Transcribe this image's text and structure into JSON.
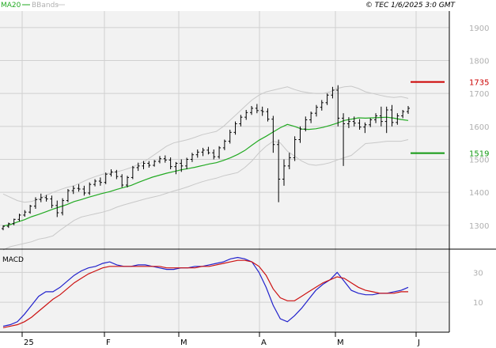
{
  "legend": {
    "ma_label": "MA20",
    "bb_label": "BBands"
  },
  "stamp": "© TEC 1/6/2025 3:0 GMT",
  "macd_label": "MACD",
  "colors": {
    "price": "#000000",
    "ma": "#22aa22",
    "bands": "#c8c8c8",
    "macd_line": "#2222cc",
    "signal_line": "#cc1111",
    "grid": "#d0d0d0",
    "panel_bg": "#f2f2f2",
    "resistance": "#cc0000",
    "support": "#119911"
  },
  "chart_data": [
    {
      "type": "line",
      "panel": "price",
      "x_ticks": [
        "25",
        "F",
        "M",
        "A",
        "M",
        "J"
      ],
      "y_ticks": [
        1300,
        1400,
        1500,
        1600,
        1700,
        1800,
        1900
      ],
      "ylim": [
        1230,
        1950
      ],
      "levels": [
        {
          "label": "1735",
          "value": 1735,
          "role": "resistance"
        },
        {
          "label": "1519",
          "value": 1519,
          "role": "support"
        }
      ],
      "series": [
        {
          "name": "MA20",
          "values": [
            1298,
            1302,
            1310,
            1317,
            1326,
            1333,
            1341,
            1349,
            1356,
            1363,
            1372,
            1378,
            1385,
            1391,
            1397,
            1402,
            1409,
            1415,
            1421,
            1430,
            1438,
            1446,
            1452,
            1458,
            1463,
            1468,
            1472,
            1476,
            1481,
            1486,
            1490,
            1497,
            1505,
            1515,
            1527,
            1543,
            1558,
            1570,
            1583,
            1596,
            1606,
            1600,
            1592,
            1591,
            1593,
            1597,
            1603,
            1610,
            1618,
            1622,
            1626,
            1625,
            1626,
            1627,
            1628,
            1625,
            1621,
            1618
          ]
        },
        {
          "name": "BB upper",
          "values": [
            1395,
            1385,
            1375,
            1370,
            1372,
            1380,
            1390,
            1400,
            1408,
            1415,
            1420,
            1430,
            1440,
            1448,
            1455,
            1458,
            1462,
            1468,
            1475,
            1485,
            1495,
            1510,
            1525,
            1540,
            1550,
            1555,
            1560,
            1567,
            1575,
            1580,
            1585,
            1600,
            1620,
            1640,
            1660,
            1680,
            1695,
            1705,
            1710,
            1715,
            1720,
            1712,
            1706,
            1702,
            1700,
            1700,
            1705,
            1715,
            1720,
            1722,
            1715,
            1705,
            1700,
            1695,
            1690,
            1688,
            1690,
            1685
          ]
        },
        {
          "name": "BB lower",
          "values": [
            1225,
            1235,
            1240,
            1245,
            1250,
            1258,
            1262,
            1268,
            1285,
            1300,
            1315,
            1325,
            1330,
            1335,
            1340,
            1346,
            1355,
            1362,
            1368,
            1374,
            1380,
            1385,
            1390,
            1397,
            1404,
            1410,
            1417,
            1425,
            1432,
            1438,
            1443,
            1450,
            1455,
            1460,
            1475,
            1495,
            1520,
            1540,
            1555,
            1550,
            1525,
            1510,
            1495,
            1485,
            1482,
            1485,
            1490,
            1498,
            1505,
            1512,
            1530,
            1548,
            1550,
            1552,
            1555,
            1555,
            1555,
            1560
          ]
        }
      ],
      "ohlc": [
        [
          1290,
          1300,
          1285,
          1297
        ],
        [
          1297,
          1308,
          1292,
          1305
        ],
        [
          1305,
          1320,
          1300,
          1318
        ],
        [
          1318,
          1335,
          1312,
          1331
        ],
        [
          1331,
          1346,
          1326,
          1340
        ],
        [
          1340,
          1362,
          1335,
          1358
        ],
        [
          1358,
          1385,
          1350,
          1378
        ],
        [
          1378,
          1396,
          1370,
          1384
        ],
        [
          1384,
          1392,
          1372,
          1380
        ],
        [
          1380,
          1390,
          1352,
          1360
        ],
        [
          1360,
          1375,
          1325,
          1338
        ],
        [
          1338,
          1382,
          1330,
          1375
        ],
        [
          1375,
          1410,
          1370,
          1405
        ],
        [
          1405,
          1420,
          1395,
          1412
        ],
        [
          1412,
          1425,
          1402,
          1410
        ],
        [
          1410,
          1420,
          1390,
          1398
        ],
        [
          1398,
          1430,
          1392,
          1424
        ],
        [
          1424,
          1440,
          1418,
          1434
        ],
        [
          1434,
          1445,
          1420,
          1430
        ],
        [
          1430,
          1460,
          1425,
          1455
        ],
        [
          1455,
          1470,
          1448,
          1462
        ],
        [
          1462,
          1468,
          1440,
          1448
        ],
        [
          1448,
          1455,
          1415,
          1422
        ],
        [
          1422,
          1450,
          1415,
          1445
        ],
        [
          1445,
          1480,
          1440,
          1475
        ],
        [
          1475,
          1490,
          1465,
          1480
        ],
        [
          1480,
          1495,
          1470,
          1488
        ],
        [
          1488,
          1495,
          1475,
          1482
        ],
        [
          1482,
          1498,
          1478,
          1494
        ],
        [
          1494,
          1510,
          1488,
          1502
        ],
        [
          1502,
          1512,
          1490,
          1498
        ],
        [
          1498,
          1506,
          1470,
          1478
        ],
        [
          1478,
          1492,
          1455,
          1488
        ],
        [
          1488,
          1500,
          1462,
          1480
        ],
        [
          1480,
          1505,
          1470,
          1500
        ],
        [
          1500,
          1520,
          1492,
          1514
        ],
        [
          1514,
          1530,
          1505,
          1522
        ],
        [
          1522,
          1535,
          1510,
          1528
        ],
        [
          1528,
          1538,
          1515,
          1520
        ],
        [
          1520,
          1530,
          1500,
          1508
        ],
        [
          1508,
          1540,
          1502,
          1535
        ],
        [
          1535,
          1560,
          1528,
          1555
        ],
        [
          1555,
          1590,
          1548,
          1582
        ],
        [
          1582,
          1615,
          1575,
          1608
        ],
        [
          1608,
          1635,
          1600,
          1628
        ],
        [
          1628,
          1650,
          1620,
          1642
        ],
        [
          1642,
          1662,
          1635,
          1655
        ],
        [
          1655,
          1668,
          1640,
          1648
        ],
        [
          1648,
          1660,
          1632,
          1645
        ],
        [
          1645,
          1655,
          1615,
          1622
        ],
        [
          1622,
          1632,
          1520,
          1545
        ],
        [
          1545,
          1560,
          1370,
          1440
        ],
        [
          1440,
          1500,
          1420,
          1480
        ],
        [
          1480,
          1520,
          1470,
          1505
        ],
        [
          1505,
          1570,
          1495,
          1560
        ],
        [
          1560,
          1600,
          1550,
          1592
        ],
        [
          1592,
          1630,
          1585,
          1620
        ],
        [
          1620,
          1645,
          1610,
          1640
        ],
        [
          1640,
          1665,
          1630,
          1658
        ],
        [
          1658,
          1680,
          1648,
          1672
        ],
        [
          1672,
          1700,
          1665,
          1695
        ],
        [
          1695,
          1720,
          1685,
          1710
        ],
        [
          1710,
          1725,
          1600,
          1625
        ],
        [
          1625,
          1640,
          1480,
          1608
        ],
        [
          1608,
          1628,
          1595,
          1615
        ],
        [
          1615,
          1630,
          1600,
          1610
        ],
        [
          1610,
          1622,
          1590,
          1598
        ],
        [
          1598,
          1612,
          1580,
          1605
        ],
        [
          1605,
          1625,
          1598,
          1620
        ],
        [
          1620,
          1640,
          1610,
          1632
        ],
        [
          1632,
          1660,
          1600,
          1615
        ],
        [
          1615,
          1660,
          1580,
          1650
        ],
        [
          1650,
          1665,
          1600,
          1612
        ],
        [
          1612,
          1640,
          1605,
          1632
        ],
        [
          1632,
          1650,
          1625,
          1645
        ],
        [
          1645,
          1662,
          1638,
          1655
        ]
      ]
    },
    {
      "type": "line",
      "panel": "macd",
      "y_ticks": [
        10,
        30
      ],
      "ylim": [
        -10,
        45
      ],
      "series": [
        {
          "name": "MACD",
          "values": [
            -6,
            -5,
            -3,
            2,
            8,
            14,
            17,
            17,
            20,
            24,
            28,
            31,
            33,
            34,
            36,
            37,
            35,
            34,
            34,
            35,
            35,
            34,
            33,
            32,
            32,
            33,
            33,
            34,
            34,
            35,
            36,
            37,
            39,
            40,
            39,
            37,
            30,
            20,
            8,
            -1,
            -3,
            1,
            6,
            12,
            18,
            22,
            25,
            30,
            24,
            18,
            16,
            15,
            15,
            16,
            16,
            17,
            18,
            20
          ]
        },
        {
          "name": "Signal",
          "values": [
            -7,
            -6,
            -5,
            -3,
            0,
            4,
            8,
            12,
            15,
            19,
            23,
            26,
            29,
            31,
            33,
            34,
            34,
            34,
            34,
            34,
            34,
            34,
            34,
            33,
            33,
            33,
            33,
            33,
            34,
            34,
            35,
            36,
            37,
            38,
            38,
            37,
            34,
            28,
            19,
            13,
            11,
            11,
            14,
            17,
            20,
            23,
            25,
            27,
            26,
            23,
            20,
            18,
            17,
            16,
            16,
            16,
            17,
            17
          ]
        }
      ]
    }
  ]
}
